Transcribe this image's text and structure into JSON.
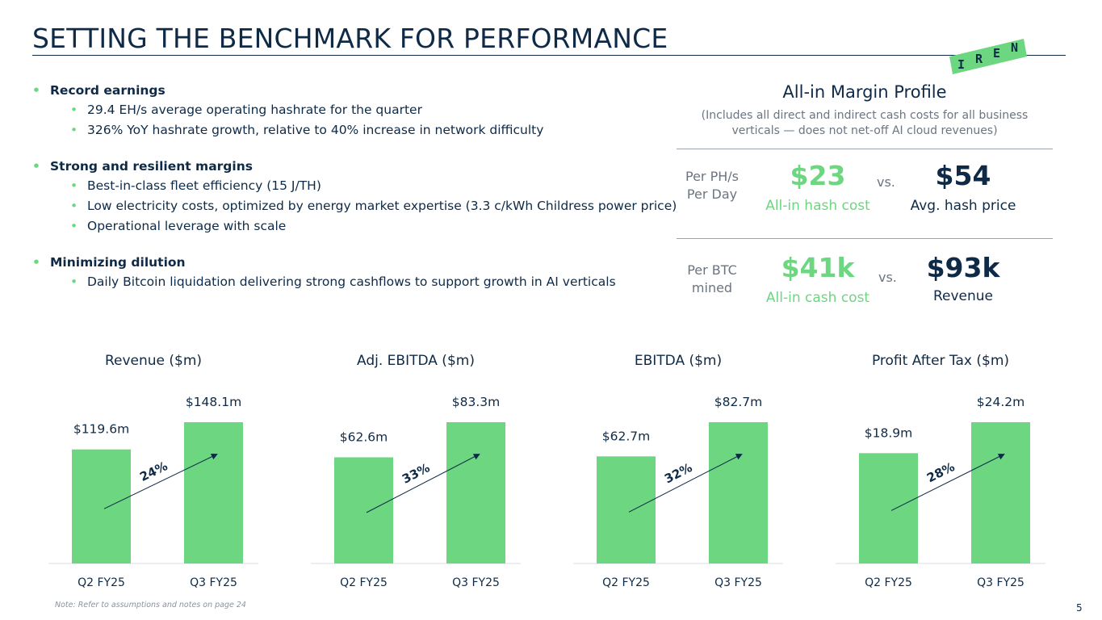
{
  "title": "SETTING THE BENCHMARK FOR PERFORMANCE",
  "logo": {
    "letters": [
      "I",
      "R",
      "E",
      "N"
    ]
  },
  "bullets": [
    {
      "head": "Record earnings",
      "subs": [
        "29.4 EH/s average operating hashrate for the quarter",
        "326% YoY hashrate growth, relative to 40% increase in network difficulty"
      ]
    },
    {
      "head": "Strong and resilient margins",
      "subs": [
        "Best-in-class fleet efficiency (15 J/TH)",
        "Low electricity costs, optimized by energy market expertise (3.3 c/kWh Childress power price)",
        "Operational leverage with scale"
      ]
    },
    {
      "head": "Minimizing dilution",
      "subs": [
        "Daily Bitcoin liquidation delivering strong cashflows to support growth in AI verticals"
      ]
    }
  ],
  "margin_profile": {
    "title": "All-in Margin Profile",
    "note_line1": "(Includes all direct and indirect cash costs for all business",
    "note_line2": "verticals — does not net-off AI cloud revenues)",
    "rows": [
      {
        "label_line1": "Per PH/s",
        "label_line2": "Per Day",
        "cost_value": "$23",
        "cost_label": "All-in hash cost",
        "vs": "vs.",
        "comp_value": "$54",
        "comp_label": "Avg. hash price"
      },
      {
        "label_line1": "Per BTC",
        "label_line2": "mined",
        "cost_value": "$41k",
        "cost_label": "All-in cash cost",
        "vs": "vs.",
        "comp_value": "$93k",
        "comp_label": "Revenue"
      }
    ]
  },
  "colors": {
    "bar": "#6dd680",
    "navy": "#0e2a47",
    "grey": "#6b7581"
  },
  "chart_data": [
    {
      "type": "bar",
      "title": "Revenue ($m)",
      "categories": [
        "Q2 FY25",
        "Q3 FY25"
      ],
      "values": [
        119.6,
        148.1
      ],
      "data_labels": [
        "$119.6m",
        "$148.1m"
      ],
      "growth_label": "24%",
      "ylim": [
        0,
        148.1
      ]
    },
    {
      "type": "bar",
      "title": "Adj. EBITDA ($m)",
      "categories": [
        "Q2 FY25",
        "Q3 FY25"
      ],
      "values": [
        62.6,
        83.3
      ],
      "data_labels": [
        "$62.6m",
        "$83.3m"
      ],
      "growth_label": "33%",
      "ylim": [
        0,
        83.3
      ]
    },
    {
      "type": "bar",
      "title": "EBITDA ($m)",
      "categories": [
        "Q2 FY25",
        "Q3 FY25"
      ],
      "values": [
        62.7,
        82.7
      ],
      "data_labels": [
        "$62.7m",
        "$82.7m"
      ],
      "growth_label": "32%",
      "ylim": [
        0,
        82.7
      ]
    },
    {
      "type": "bar",
      "title": "Profit After Tax ($m)",
      "categories": [
        "Q2 FY25",
        "Q3 FY25"
      ],
      "values": [
        18.9,
        24.2
      ],
      "data_labels": [
        "$18.9m",
        "$24.2m"
      ],
      "growth_label": "28%",
      "ylim": [
        0,
        24.2
      ]
    }
  ],
  "footnote": "Note: Refer to assumptions and notes on page 24",
  "page_number": "5"
}
